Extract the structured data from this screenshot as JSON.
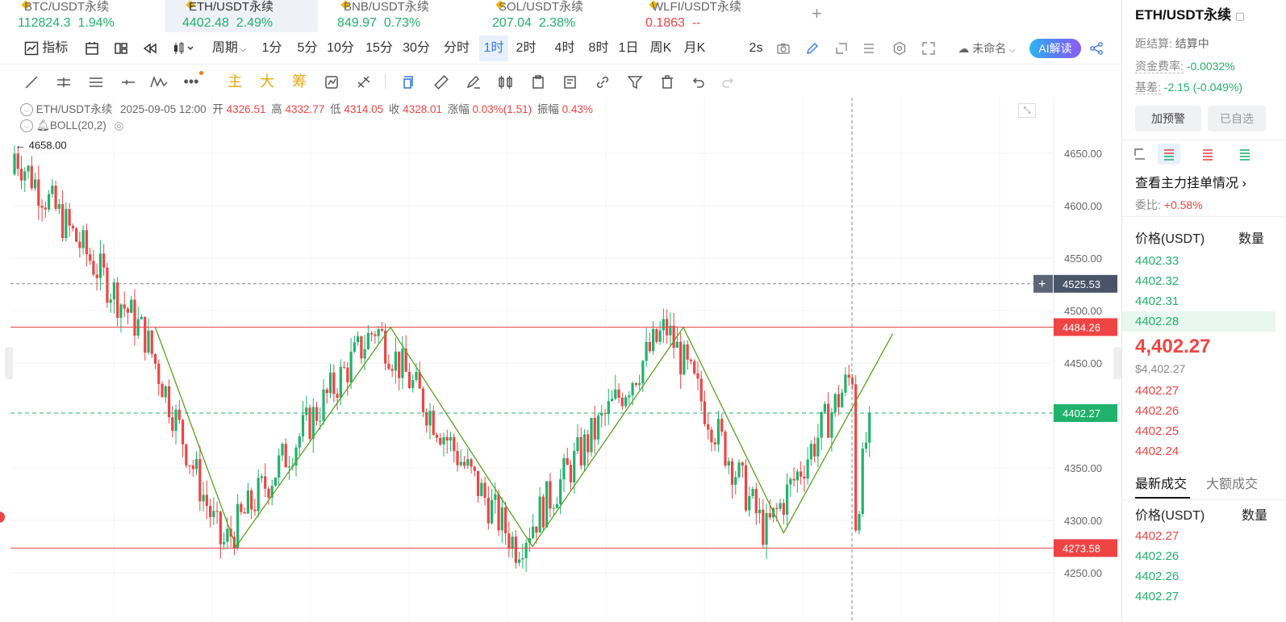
{
  "tickers": [
    {
      "name": "BTC/USDT永续",
      "price": "112824.3",
      "change": "1.94%",
      "dir": "up",
      "active": false
    },
    {
      "name": "ETH/USDT永续",
      "price": "4402.48",
      "change": "2.49%",
      "dir": "up",
      "active": true
    },
    {
      "name": "BNB/USDT永续",
      "price": "849.97",
      "change": "0.73%",
      "dir": "up",
      "active": false
    },
    {
      "name": "SOL/USDT永续",
      "price": "207.04",
      "change": "2.38%",
      "dir": "up",
      "active": false
    },
    {
      "name": "WLFI/USDT永续",
      "price": "0.1863",
      "change": "--",
      "dir": "down",
      "active": false
    }
  ],
  "add_tab": "+",
  "toolbar": {
    "indicator": "指标",
    "period": "周期",
    "intervals": [
      "1分",
      "5分",
      "10分",
      "15分",
      "30分",
      "分时",
      "1时",
      "2时",
      "4时",
      "8时",
      "1日",
      "周K",
      "月K"
    ],
    "selected_interval": "1时",
    "refresh": "2s",
    "layout_name": "未命名",
    "ai": "AI解读"
  },
  "drawing_tools": {
    "main": "主",
    "big": "大",
    "chips": "筹"
  },
  "info": {
    "symbol": "ETH/USDT永续",
    "datetime": "2025-09-05 12:00",
    "open_label": "开",
    "open": "4326.51",
    "high_label": "高",
    "high": "4332.77",
    "low_label": "低",
    "low": "4314.05",
    "close_label": "收",
    "close": "4328.01",
    "chg_label": "涨幅",
    "chg": "0.03%(1.51)",
    "amp_label": "振幅",
    "amp": "0.43%"
  },
  "boll": "BOLL(20,2)",
  "chart_data": {
    "type": "candlestick",
    "symbol": "ETH/USDT永续",
    "interval": "1时",
    "ylim": [
      4230,
      4670
    ],
    "y_ticks": [
      4650,
      4600,
      4550,
      4500,
      4450,
      4400,
      4350,
      4300,
      4250
    ],
    "y_tick_labels": [
      "4650.00",
      "4600.00",
      "4550.00",
      "4500.00",
      "4450.00",
      "4400.00",
      "4350.00",
      "4300.00",
      "4250.00"
    ],
    "max_label": "4658.00",
    "max_value": 4658.0,
    "horizontal_lines": [
      {
        "label": "4484.26",
        "value": 4484.26,
        "color": "#ef4444"
      },
      {
        "label": "4273.58",
        "value": 4273.58,
        "color": "#ef4444"
      }
    ],
    "crosshair_label": "4525.53",
    "crosshair_value": 4525.53,
    "last_price_label": "4402.27",
    "last_price_value": 4402.27,
    "trend_lines": [
      {
        "points": [
          [
            0.145,
            4484
          ],
          [
            0.236,
            4275
          ],
          [
            0.41,
            4484
          ],
          [
            0.57,
            4275
          ],
          [
            0.74,
            4484
          ],
          [
            0.853,
            4288
          ],
          [
            0.976,
            4478
          ]
        ]
      }
    ],
    "colors": {
      "up": "#20b26c",
      "down": "#ef4444",
      "trend": "#5aa01e"
    }
  },
  "right": {
    "title": "ETH/USDT永续",
    "settle_label": "距结算:",
    "settle_value": "结算中",
    "funding_label": "资金费率:",
    "funding_value": "-0.0032%",
    "basis_label": "基差:",
    "basis_value": "-2.15 (-0.049%)",
    "alert_btn": "加预警",
    "fav_btn": "已自选",
    "main_orders": "查看主力挂单情况",
    "ratio_label": "委比:",
    "ratio_value": "+0.58%",
    "price_header": "价格(USDT)",
    "qty_header": "数量",
    "asks": [
      "4402.33",
      "4402.32",
      "4402.31",
      "4402.28"
    ],
    "last_price": "4,402.27",
    "last_price_usd": "$4,402.27",
    "bids": [
      "4402.27",
      "4402.26",
      "4402.25",
      "4402.24"
    ],
    "trade_tabs": [
      "最新成交",
      "大额成交"
    ],
    "trades_price_header": "价格(USDT)",
    "trades_qty_header": "数量",
    "trades": [
      {
        "price": "4402.27",
        "dir": "down"
      },
      {
        "price": "4402.26",
        "dir": "up"
      },
      {
        "price": "4402.26",
        "dir": "up"
      },
      {
        "price": "4402.27",
        "dir": "up"
      }
    ]
  }
}
